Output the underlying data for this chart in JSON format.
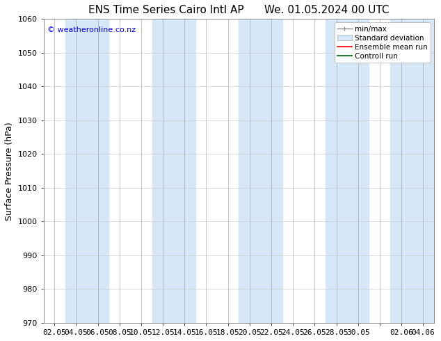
{
  "title_left": "ENS Time Series Cairo Intl AP",
  "title_right": "We. 01.05.2024 00 UTC",
  "ylabel": "Surface Pressure (hPa)",
  "watermark": "© weatheronline.co.nz",
  "ylim": [
    970,
    1060
  ],
  "yticks": [
    970,
    980,
    990,
    1000,
    1010,
    1020,
    1030,
    1040,
    1050,
    1060
  ],
  "x_labels": [
    "02.05",
    "04.05",
    "06.05",
    "08.05",
    "10.05",
    "12.05",
    "14.05",
    "16.05",
    "18.05",
    "20.05",
    "22.05",
    "24.05",
    "26.05",
    "28.05",
    "30.05",
    "",
    "02.06",
    "04.06"
  ],
  "num_points": 18,
  "shade_band_color": "#d6e8f8",
  "shade_indices": [
    1,
    2,
    5,
    6,
    9,
    10,
    13,
    14,
    16,
    17
  ],
  "background_color": "#ffffff",
  "grid_color": "#cccccc",
  "title_fontsize": 11,
  "axis_fontsize": 9,
  "tick_fontsize": 8,
  "legend_fontsize": 7.5
}
